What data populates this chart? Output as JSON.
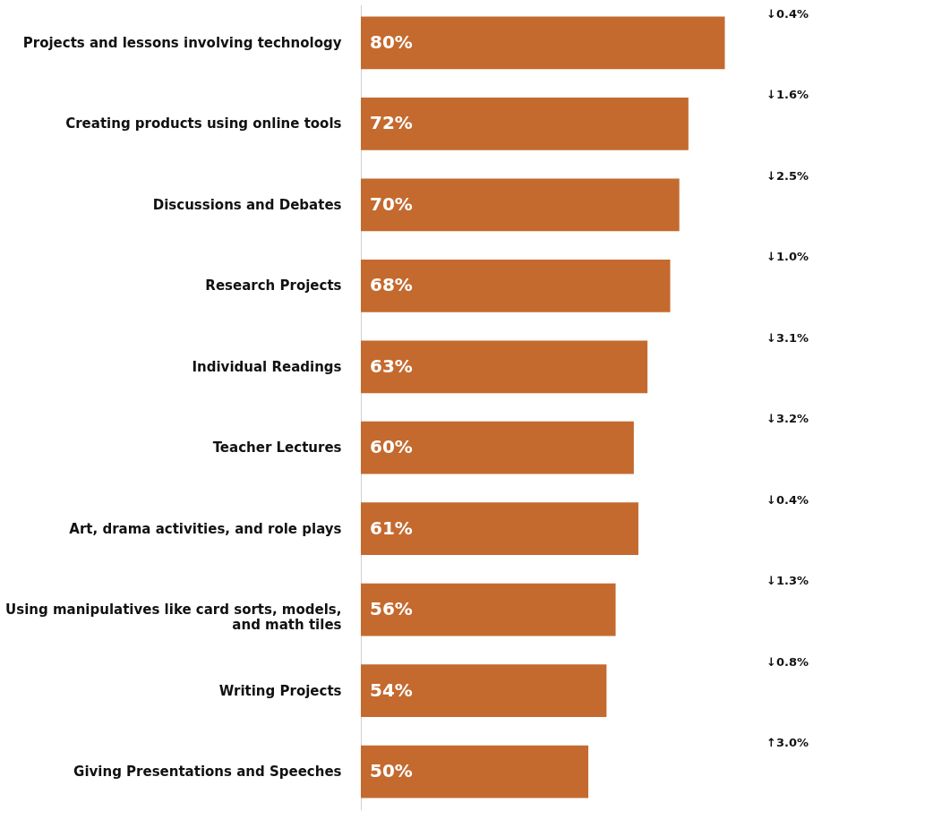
{
  "chart_data": {
    "type": "bar",
    "orientation": "horizontal",
    "categories": [
      "Projects and lessons involving technology",
      "Creating products using online tools",
      "Discussions and Debates",
      "Research Projects",
      "Individual Readings",
      "Teacher Lectures",
      "Art, drama activities, and role plays",
      "Using manipulatives like card sorts, models, and math tiles",
      "Writing Projects",
      "Giving Presentations and Speeches"
    ],
    "values": [
      80,
      72,
      70,
      68,
      63,
      60,
      61,
      56,
      54,
      50
    ],
    "value_labels": [
      "80%",
      "72%",
      "70%",
      "68%",
      "63%",
      "60%",
      "61%",
      "56%",
      "54%",
      "50%"
    ],
    "color": "#c46a2f",
    "grid": false,
    "annotations": [
      "↓0.4%",
      "↓1.6%",
      "↓2.5%",
      "↓1.0%",
      "↓3.1%",
      "↓3.2%",
      "↓0.4%",
      "↓1.3%",
      "↓0.8%",
      "↑3.0%"
    ]
  }
}
